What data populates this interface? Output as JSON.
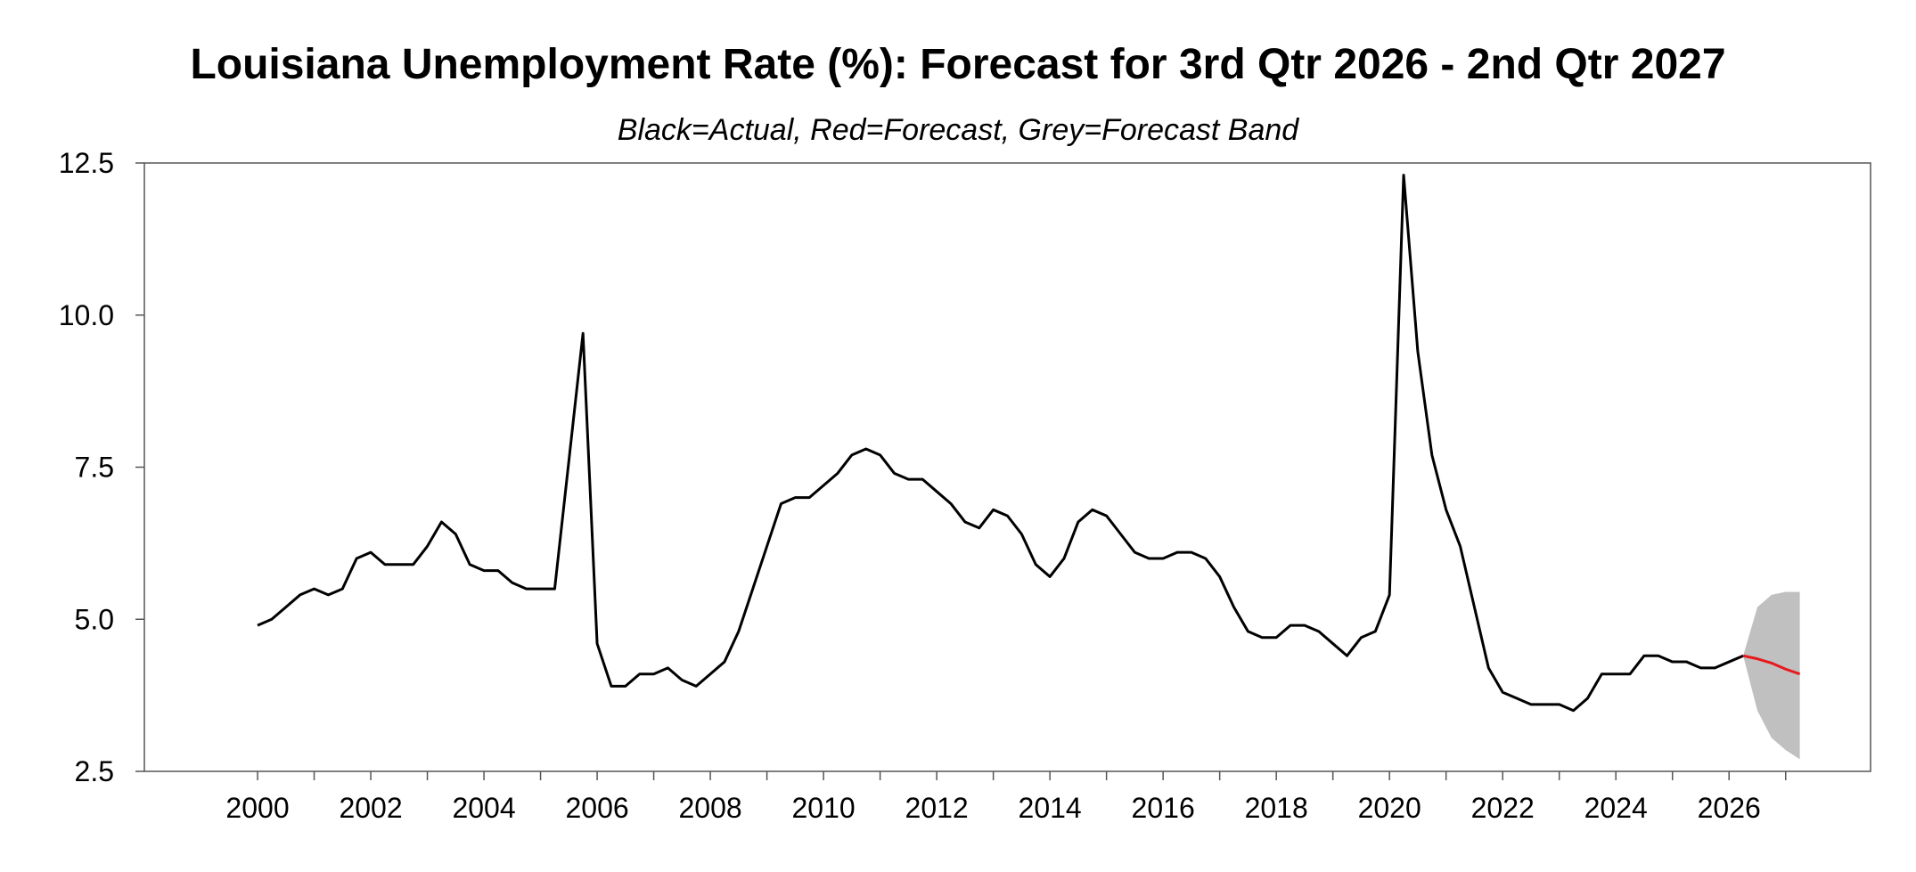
{
  "chart_data": {
    "type": "line",
    "title": "Louisiana Unemployment Rate (%): Forecast for 3rd Qtr 2026 - 2nd Qtr 2027",
    "subtitle": "Black=Actual, Red=Forecast, Grey=Forecast Band",
    "xlabel": "",
    "ylabel": "",
    "xlim": [
      1998,
      2028.5
    ],
    "ylim": [
      2.5,
      12.5
    ],
    "yticks": [
      "2.5",
      "5.0",
      "7.5",
      "10.0",
      "12.5"
    ],
    "xticks": [
      "2000",
      "2002",
      "2004",
      "2006",
      "2008",
      "2010",
      "2012",
      "2014",
      "2016",
      "2018",
      "2020",
      "2022",
      "2024",
      "2026"
    ],
    "grid": false,
    "legend": "none",
    "colors": {
      "actual": "#000000",
      "forecast": "#e8191c",
      "band": "#c0c0c0",
      "frame": "#555555"
    },
    "series": [
      {
        "role": "actual",
        "x": [
          2000.0,
          2000.25,
          2000.5,
          2000.75,
          2001.0,
          2001.25,
          2001.5,
          2001.75,
          2002.0,
          2002.25,
          2002.5,
          2002.75,
          2003.0,
          2003.25,
          2003.5,
          2003.75,
          2004.0,
          2004.25,
          2004.5,
          2004.75,
          2005.0,
          2005.25,
          2005.5,
          2005.75,
          2006.0,
          2006.25,
          2006.5,
          2006.75,
          2007.0,
          2007.25,
          2007.5,
          2007.75,
          2008.0,
          2008.25,
          2008.5,
          2008.75,
          2009.0,
          2009.25,
          2009.5,
          2009.75,
          2010.0,
          2010.25,
          2010.5,
          2010.75,
          2011.0,
          2011.25,
          2011.5,
          2011.75,
          2012.0,
          2012.25,
          2012.5,
          2012.75,
          2013.0,
          2013.25,
          2013.5,
          2013.75,
          2014.0,
          2014.25,
          2014.5,
          2014.75,
          2015.0,
          2015.25,
          2015.5,
          2015.75,
          2016.0,
          2016.25,
          2016.5,
          2016.75,
          2017.0,
          2017.25,
          2017.5,
          2017.75,
          2018.0,
          2018.25,
          2018.5,
          2018.75,
          2019.0,
          2019.25,
          2019.5,
          2019.75,
          2020.0,
          2020.25,
          2020.5,
          2020.75,
          2021.0,
          2021.25,
          2021.5,
          2021.75,
          2022.0,
          2022.25,
          2022.5,
          2022.75,
          2023.0,
          2023.25,
          2023.5,
          2023.75,
          2024.0,
          2024.25,
          2024.5,
          2024.75,
          2025.0,
          2025.25,
          2025.5,
          2025.75,
          2026.0,
          2026.25
        ],
        "values": [
          4.9,
          5.0,
          5.2,
          5.4,
          5.5,
          5.4,
          5.5,
          6.0,
          6.1,
          5.9,
          5.9,
          5.9,
          6.2,
          6.6,
          6.4,
          5.9,
          5.8,
          5.8,
          5.6,
          5.5,
          5.5,
          5.5,
          7.6,
          9.7,
          4.6,
          3.9,
          3.9,
          4.1,
          4.1,
          4.2,
          4.0,
          3.9,
          4.1,
          4.3,
          4.8,
          5.5,
          6.2,
          6.9,
          7.0,
          7.0,
          7.2,
          7.4,
          7.7,
          7.8,
          7.7,
          7.4,
          7.3,
          7.3,
          7.1,
          6.9,
          6.6,
          6.5,
          6.8,
          6.7,
          6.4,
          5.9,
          5.7,
          6.0,
          6.6,
          6.8,
          6.7,
          6.4,
          6.1,
          6.0,
          6.0,
          6.1,
          6.1,
          6.0,
          5.7,
          5.2,
          4.8,
          4.7,
          4.7,
          4.9,
          4.9,
          4.8,
          4.6,
          4.4,
          4.7,
          4.8,
          5.4,
          12.3,
          9.4,
          7.7,
          6.8,
          6.2,
          5.2,
          4.2,
          3.8,
          3.7,
          3.6,
          3.6,
          3.6,
          3.5,
          3.7,
          4.1,
          4.1,
          4.1,
          4.4,
          4.4,
          4.3,
          4.3,
          4.2,
          4.2,
          4.3,
          4.4
        ]
      },
      {
        "role": "forecast",
        "x": [
          2026.25,
          2026.5,
          2026.75,
          2027.0,
          2027.25
        ],
        "values": [
          4.4,
          4.35,
          4.28,
          4.18,
          4.1
        ]
      }
    ],
    "band": {
      "x": [
        2026.25,
        2026.5,
        2026.75,
        2027.0,
        2027.25
      ],
      "upper": [
        4.4,
        5.2,
        5.4,
        5.45,
        5.45
      ],
      "lower": [
        4.4,
        3.5,
        3.05,
        2.85,
        2.7
      ]
    }
  }
}
